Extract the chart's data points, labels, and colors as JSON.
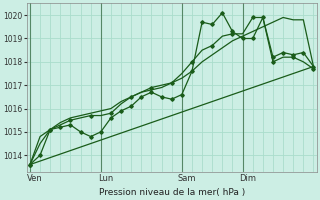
{
  "xlabel": "Pression niveau de la mer( hPa )",
  "bg_color": "#cceee4",
  "grid_color": "#aaddcc",
  "vline_color": "#558866",
  "line_color": "#1a5c1a",
  "ylim": [
    1013.3,
    1020.5
  ],
  "xlim": [
    -0.3,
    28.3
  ],
  "day_labels": [
    "Ven",
    "Lun",
    "Sam",
    "Dim"
  ],
  "day_positions": [
    0.5,
    7.5,
    15.5,
    21.5
  ],
  "vline_positions": [
    0,
    7,
    15,
    21
  ],
  "ytick_values": [
    1014,
    1015,
    1016,
    1017,
    1018,
    1019,
    1020
  ],
  "minor_xticks": [
    0,
    1,
    2,
    3,
    4,
    5,
    6,
    7,
    8,
    9,
    10,
    11,
    12,
    13,
    14,
    15,
    16,
    17,
    18,
    19,
    20,
    21,
    22,
    23,
    24,
    25,
    26,
    27,
    28
  ],
  "line1_x": [
    0,
    1,
    2,
    3,
    4,
    5,
    6,
    7,
    8,
    9,
    10,
    11,
    12,
    13,
    14,
    15,
    16,
    17,
    18,
    19,
    20,
    21,
    22,
    23,
    24,
    25,
    26,
    27,
    28
  ],
  "line1_y": [
    1013.6,
    1014.0,
    1015.1,
    1015.2,
    1015.3,
    1015.0,
    1014.8,
    1015.0,
    1015.6,
    1015.9,
    1016.1,
    1016.5,
    1016.7,
    1016.5,
    1016.4,
    1016.6,
    1017.6,
    1019.7,
    1019.6,
    1020.1,
    1019.3,
    1019.0,
    1019.0,
    1019.9,
    1018.2,
    1018.4,
    1018.3,
    1018.4,
    1017.8
  ],
  "line2_x": [
    0,
    1,
    2,
    3,
    4,
    5,
    6,
    7,
    8,
    9,
    10,
    11,
    12,
    13,
    14,
    15,
    16,
    17,
    18,
    19,
    20,
    21,
    22,
    23,
    24,
    25,
    26,
    27,
    28
  ],
  "line2_y": [
    1013.6,
    1014.8,
    1015.1,
    1015.3,
    1015.5,
    1015.6,
    1015.7,
    1015.7,
    1015.8,
    1016.2,
    1016.5,
    1016.7,
    1016.9,
    1017.0,
    1017.1,
    1017.5,
    1018.0,
    1018.5,
    1018.7,
    1019.1,
    1019.2,
    1019.2,
    1019.9,
    1019.9,
    1018.0,
    1018.2,
    1018.2,
    1018.0,
    1017.7
  ],
  "line3_x": [
    0,
    28
  ],
  "line3_y": [
    1013.6,
    1017.8
  ],
  "line4_x": [
    0,
    1,
    2,
    3,
    4,
    5,
    6,
    7,
    8,
    9,
    10,
    11,
    12,
    13,
    14,
    15,
    16,
    17,
    18,
    19,
    20,
    21,
    22,
    23,
    24,
    25,
    26,
    27,
    28
  ],
  "line4_y": [
    1013.6,
    1014.5,
    1015.1,
    1015.4,
    1015.6,
    1015.7,
    1015.8,
    1015.9,
    1016.0,
    1016.3,
    1016.5,
    1016.7,
    1016.8,
    1016.9,
    1017.1,
    1017.3,
    1017.6,
    1018.0,
    1018.3,
    1018.6,
    1018.9,
    1019.1,
    1019.3,
    1019.5,
    1019.7,
    1019.9,
    1019.8,
    1019.8,
    1017.8
  ]
}
